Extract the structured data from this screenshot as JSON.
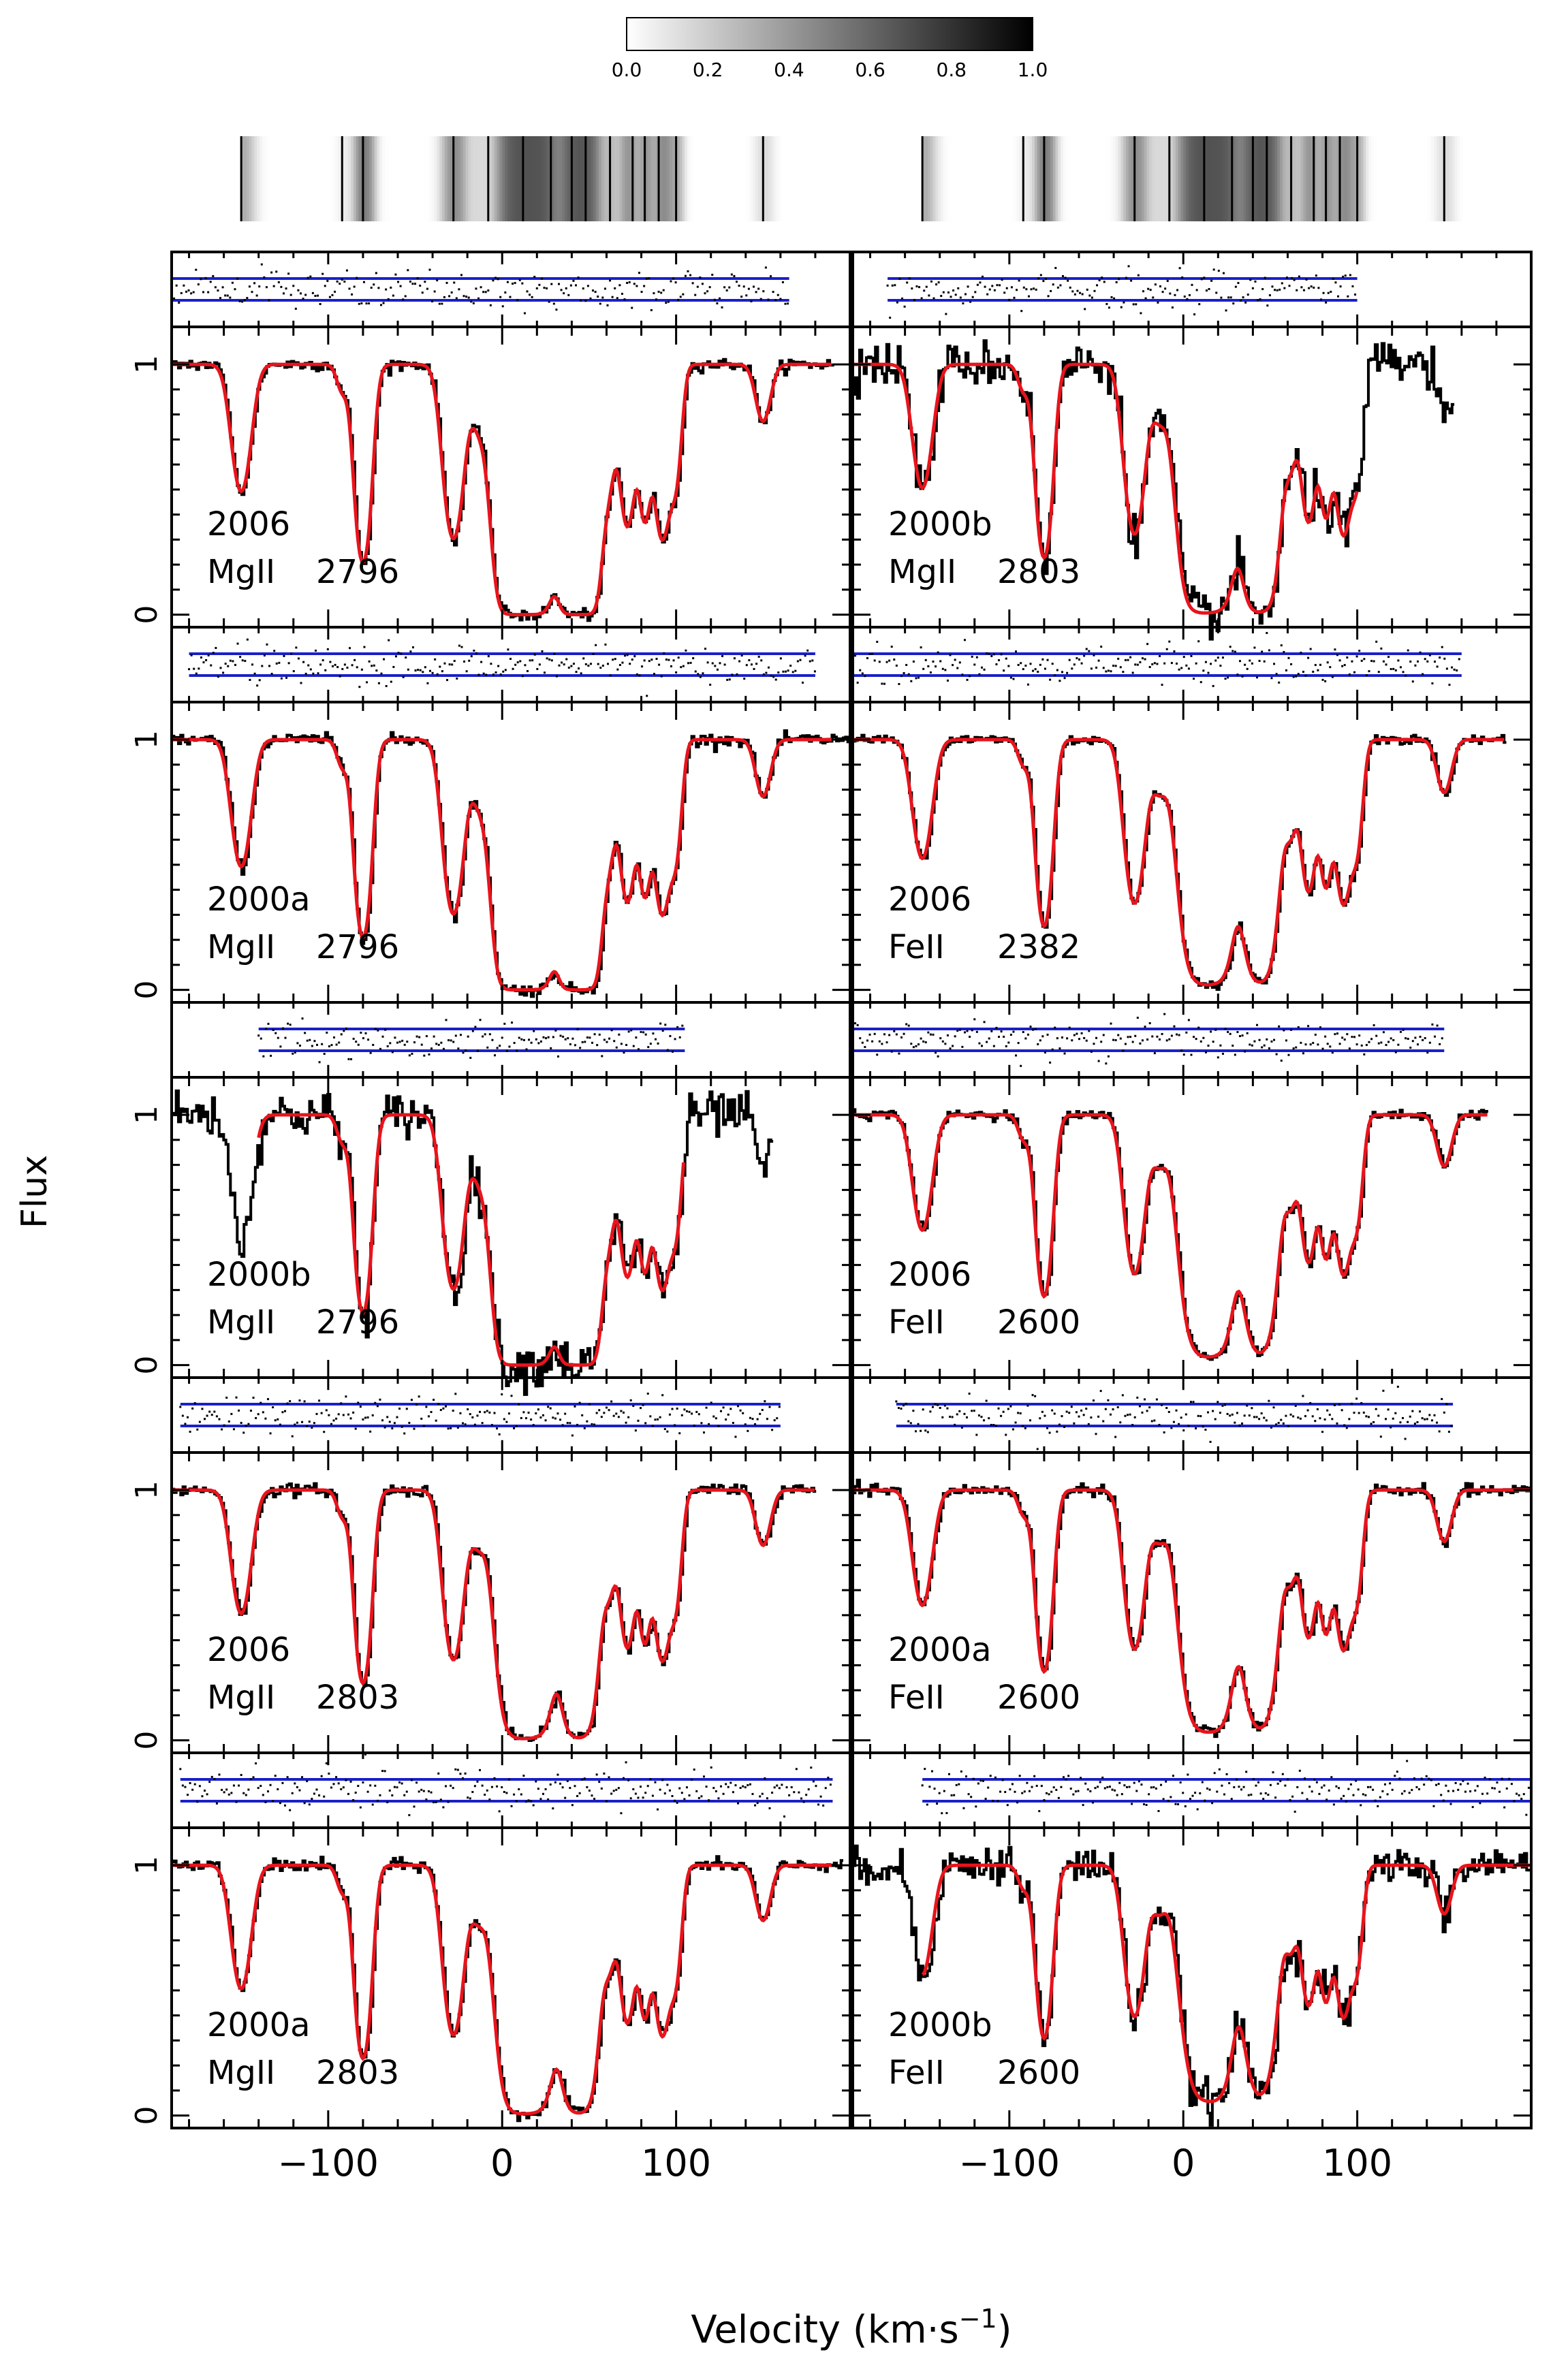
{
  "figure": {
    "ylabel": "Flux",
    "xlabel_main": "Velocity (km",
    "xlabel_mid": "·",
    "xlabel_s": "s",
    "xlabel_exp": "−1",
    "xlabel_close": ")"
  },
  "colorbar": {
    "ticks": [
      "0.0",
      "0.2",
      "0.4",
      "0.6",
      "0.8",
      "1.0"
    ],
    "range": [
      0,
      1
    ]
  },
  "colors": {
    "data": "#000000",
    "model": "#e8141c",
    "residual_band": "#1a20c8"
  },
  "chart_data": {
    "type": "line",
    "xlim": [
      -190,
      200
    ],
    "ylim": [
      -0.05,
      1.15
    ],
    "x_ticks": [
      -100,
      0,
      100
    ],
    "x_tick_labels": [
      "−100",
      "0",
      "100"
    ],
    "y_ticks": [
      0,
      1
    ],
    "y_tick_labels": [
      "0",
      "1"
    ],
    "components_v": [
      -150,
      -92,
      -80,
      -28,
      -8,
      12,
      28,
      40,
      48,
      62,
      75,
      82,
      90,
      100,
      150
    ],
    "panels": [
      {
        "col": 0,
        "row": 0,
        "epoch": "2006",
        "ion": "MgII",
        "ion_display": "MgII",
        "wavelength": "2796",
        "x_range": [
          -190,
          190
        ],
        "model_range": [
          -190,
          190
        ],
        "noise": 0.012,
        "residual_range": [
          -190,
          165
        ],
        "scale": 1.0,
        "model_only": false
      },
      {
        "col": 0,
        "row": 1,
        "epoch": "2000a",
        "ion": "MgII",
        "ion_display": "MgII",
        "wavelength": "2796",
        "x_range": [
          -190,
          200
        ],
        "model_range": [
          -190,
          190
        ],
        "noise": 0.012,
        "residual_range": [
          -180,
          180
        ],
        "scale": 1.0,
        "model_only": false
      },
      {
        "col": 0,
        "row": 2,
        "epoch": "2000b",
        "ion": "MgII",
        "ion_display": "MgII",
        "wavelength": "2796",
        "x_range": [
          -190,
          155
        ],
        "model_range": [
          -140,
          105
        ],
        "noise": 0.045,
        "residual_range": [
          -140,
          105
        ],
        "scale": 1.0,
        "model_only": false
      },
      {
        "col": 0,
        "row": 3,
        "epoch": "2006",
        "ion": "MgII",
        "ion_display": "MgII",
        "wavelength": "2803",
        "x_range": [
          -190,
          180
        ],
        "model_range": [
          -190,
          180
        ],
        "noise": 0.012,
        "residual_range": [
          -185,
          160
        ],
        "scale": 0.97,
        "model_only": false
      },
      {
        "col": 0,
        "row": 4,
        "epoch": "2000a",
        "ion": "MgII",
        "ion_display": "MgII",
        "wavelength": "2803",
        "x_range": [
          -190,
          195
        ],
        "model_range": [
          -190,
          190
        ],
        "noise": 0.012,
        "residual_range": [
          -185,
          190
        ],
        "scale": 0.97,
        "model_only": false
      },
      {
        "col": 1,
        "row": 0,
        "epoch": "2000b",
        "ion": "MgII",
        "ion_display": "MgII",
        "wavelength": "2803",
        "x_range": [
          -190,
          155
        ],
        "model_range": [
          -190,
          100
        ],
        "noise": 0.045,
        "residual_range": [
          -170,
          100
        ],
        "scale": 0.97,
        "model_only": false
      },
      {
        "col": 1,
        "row": 1,
        "epoch": "2006",
        "ion": "FeII",
        "ion_display": "FeII",
        "wavelength": "2382",
        "x_range": [
          -190,
          185
        ],
        "model_range": [
          -190,
          185
        ],
        "noise": 0.01,
        "residual_range": [
          -190,
          160
        ],
        "scale": 0.93,
        "model_only": false
      },
      {
        "col": 1,
        "row": 2,
        "epoch": "2006",
        "ion": "FeII",
        "ion_display": "FeII",
        "wavelength": "2600",
        "x_range": [
          -190,
          175
        ],
        "model_range": [
          -190,
          175
        ],
        "noise": 0.01,
        "residual_range": [
          -190,
          150
        ],
        "scale": 0.9,
        "model_only": false
      },
      {
        "col": 1,
        "row": 3,
        "epoch": "2000a",
        "ion": "FeII",
        "ion_display": "FeII",
        "wavelength": "2600",
        "x_range": [
          -190,
          200
        ],
        "model_range": [
          -190,
          200
        ],
        "noise": 0.012,
        "residual_range": [
          -165,
          155
        ],
        "scale": 0.9,
        "model_only": false
      },
      {
        "col": 1,
        "row": 4,
        "epoch": "2000b",
        "ion": "FeII",
        "ion_display": "FeII",
        "wavelength": "2600",
        "x_range": [
          -190,
          200
        ],
        "model_range": [
          -150,
          200
        ],
        "noise": 0.04,
        "residual_range": [
          -150,
          200
        ],
        "scale": 0.85,
        "model_only": false
      }
    ]
  }
}
